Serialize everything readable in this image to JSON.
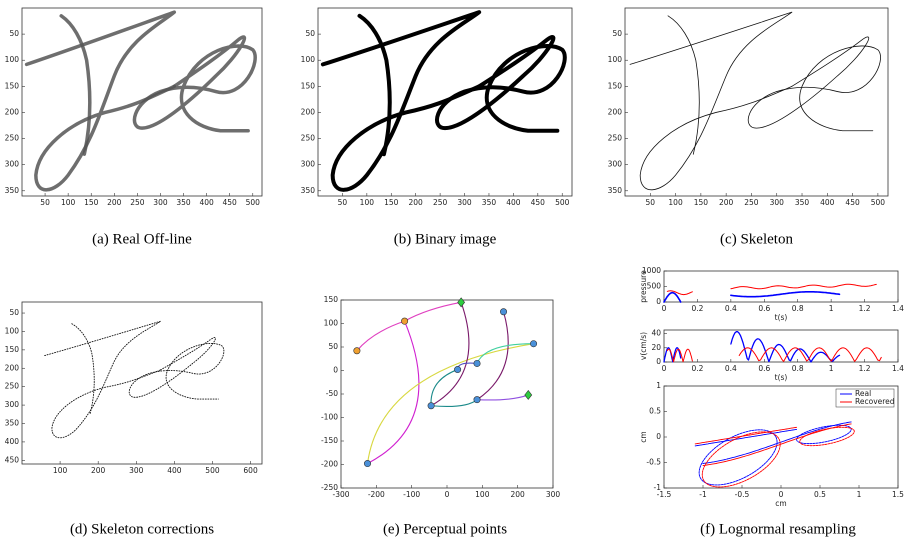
{
  "panels": [
    {
      "caption": "(a) Real Off-line",
      "xlim": [
        0,
        520
      ],
      "ylim": [
        360,
        0
      ],
      "xticks": [
        50,
        100,
        150,
        200,
        250,
        300,
        350,
        400,
        450,
        500
      ],
      "yticks": [
        50,
        100,
        150,
        200,
        250,
        300,
        350
      ]
    },
    {
      "caption": "(b) Binary image",
      "xlim": [
        0,
        520
      ],
      "ylim": [
        360,
        0
      ],
      "xticks": [
        50,
        100,
        150,
        200,
        250,
        300,
        350,
        400,
        450,
        500
      ],
      "yticks": [
        50,
        100,
        150,
        200,
        250,
        300,
        350
      ]
    },
    {
      "caption": "(c) Skeleton",
      "xlim": [
        0,
        520
      ],
      "ylim": [
        360,
        0
      ],
      "xticks": [
        50,
        100,
        150,
        200,
        250,
        300,
        350,
        400,
        450,
        500
      ],
      "yticks": [
        50,
        100,
        150,
        200,
        250,
        300,
        350
      ]
    },
    {
      "caption": "(d) Skeleton corrections",
      "xlim": [
        0,
        630
      ],
      "ylim": [
        460,
        20
      ],
      "xticks": [
        100,
        200,
        300,
        400,
        500,
        600
      ],
      "yticks": [
        50,
        100,
        150,
        200,
        250,
        300,
        350,
        400,
        450
      ]
    },
    {
      "caption": "(e) Perceptual points",
      "xlim": [
        -300,
        300
      ],
      "ylim": [
        -250,
        150
      ],
      "xticks": [
        -300,
        -200,
        -100,
        0,
        100,
        200,
        300
      ],
      "yticks": [
        -250,
        -200,
        -150,
        -100,
        -50,
        0,
        50,
        100,
        150
      ],
      "points": {
        "x": [
          -255,
          -120,
          40,
          160,
          245,
          85,
          30,
          -45,
          85,
          230,
          -225
        ],
        "y": [
          42,
          105,
          145,
          125,
          57,
          15,
          2,
          -75,
          -62,
          -52,
          -198
        ],
        "colors": [
          "#f0a030",
          "#f0a030",
          "#2ecc40",
          "#4a90d9",
          "#4a90d9",
          "#4a90d9",
          "#4a90d9",
          "#4a90d9",
          "#4a90d9",
          "#2ecc40",
          "#4a90d9"
        ]
      }
    },
    {
      "caption": "(f) Lognormal resampling",
      "axes": [
        {
          "ylabel": "pressure",
          "xlabel": "t(s)",
          "xlim": [
            0,
            1.4
          ],
          "ylim": [
            0,
            1000
          ],
          "xticks": [
            0,
            0.2,
            0.4,
            0.6,
            0.8,
            1,
            1.2,
            1.4
          ],
          "yticks": [
            0,
            500,
            1000
          ]
        },
        {
          "ylabel": "v(cm/s)",
          "xlabel": "t(s)",
          "xlim": [
            0,
            1.4
          ],
          "ylim": [
            0,
            45
          ],
          "xticks": [
            0,
            0.2,
            0.4,
            0.6,
            0.8,
            1,
            1.2,
            1.4
          ],
          "yticks": [
            0,
            20,
            40
          ]
        },
        {
          "ylabel": "cm",
          "xlabel": "cm",
          "xlim": [
            -1.5,
            1.5
          ],
          "ylim": [
            -1,
            1
          ],
          "xticks": [
            -1.5,
            -1,
            -0.5,
            0,
            0.5,
            1,
            1.5
          ],
          "yticks": [
            -1,
            -0.5,
            0,
            0.5,
            1
          ],
          "series": [
            {
              "name": "Real",
              "color": "#0000ff"
            },
            {
              "name": "Recovered",
              "color": "#ff0000"
            }
          ]
        }
      ]
    }
  ]
}
